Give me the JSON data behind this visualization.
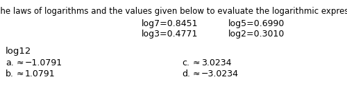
{
  "instruction": "Use the laws of logarithms and the values given below to evaluate the logarithmic expression.",
  "given_row1_left": "log7=0.8451",
  "given_row1_right": "log5=0.6990",
  "given_row2_left": "log3=0.4771",
  "given_row2_right": "log2=0.3010",
  "expression": "log12",
  "choice_a_label": "a.",
  "choice_a_sym": "≈",
  "choice_a_val": "−1.0791",
  "choice_b_label": "b.",
  "choice_b_sym": "≈",
  "choice_b_val": "1.0791",
  "choice_c_label": "c.",
  "choice_c_sym": "≈",
  "choice_c_val": "3.0234",
  "choice_d_label": "d.",
  "choice_d_sym": "≈",
  "choice_d_val": "−3.0234",
  "bg_color": "#ffffff",
  "text_color": "#000000",
  "font_size_instruction": 8.5,
  "font_size_given": 9.0,
  "font_size_expression": 9.5,
  "font_size_choices": 9.0
}
